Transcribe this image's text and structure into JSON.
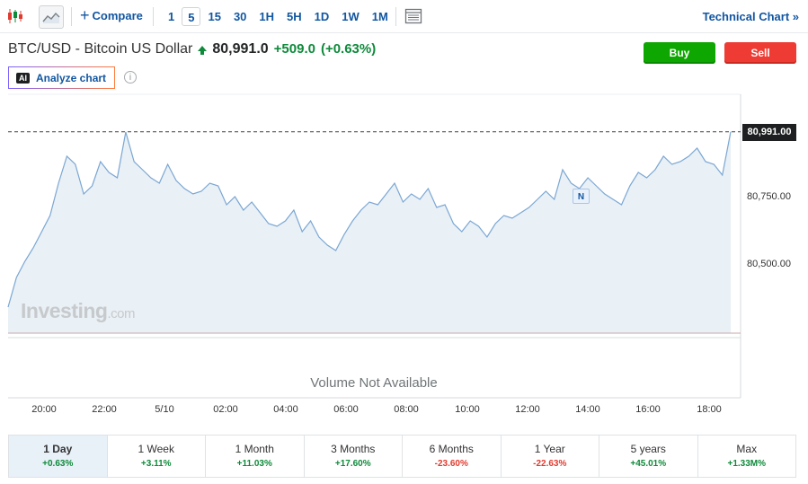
{
  "toolbar": {
    "chart_type_icons": [
      "candlestick-icon",
      "area-chart-icon"
    ],
    "compare_label": "Compare",
    "intervals": [
      "1",
      "5",
      "15",
      "30",
      "1H",
      "5H",
      "1D",
      "1W",
      "1M"
    ],
    "active_interval": "5",
    "layout_icon": "layout-icon",
    "technical_chart_label": "Technical Chart »"
  },
  "instrument": {
    "name": "BTC/USD - Bitcoin US Dollar",
    "price": "80,991.0",
    "change": "+509.0",
    "change_pct": "(+0.63%)",
    "direction": "up",
    "up_color": "#0e8a3a"
  },
  "actions": {
    "buy_label": "Buy",
    "sell_label": "Sell",
    "buy_color": "#0ea600",
    "sell_color": "#ee3b33"
  },
  "analyze": {
    "badge": "AI",
    "label": "Analyze chart",
    "info_icon": "i"
  },
  "chart": {
    "last_price_tag": "80,991.00",
    "y_labels": [
      "80,750.00",
      "80,500.00"
    ],
    "x_labels": [
      "20:00",
      "22:00",
      "5/10",
      "02:00",
      "04:00",
      "06:00",
      "08:00",
      "10:00",
      "12:00",
      "14:00",
      "16:00",
      "18:00"
    ],
    "volume_text": "Volume Not Available",
    "watermark": "Investing",
    "watermark_suffix": ".com",
    "news_marker": "N",
    "line_color": "#7ba7d3",
    "fill_color": "#e9f0f6"
  },
  "chart_data": {
    "type": "area",
    "y_ticks": [
      80750,
      80500
    ],
    "last_price": 80991,
    "values": [
      80340,
      80450,
      80510,
      80560,
      80620,
      80680,
      80800,
      80900,
      80870,
      80760,
      80790,
      80880,
      80840,
      80820,
      80990,
      80880,
      80850,
      80820,
      80800,
      80870,
      80810,
      80780,
      80760,
      80770,
      80800,
      80790,
      80720,
      80750,
      80700,
      80730,
      80690,
      80650,
      80640,
      80660,
      80700,
      80620,
      80660,
      80600,
      80570,
      80550,
      80610,
      80660,
      80700,
      80730,
      80720,
      80760,
      80800,
      80730,
      80760,
      80740,
      80780,
      80710,
      80720,
      80650,
      80620,
      80660,
      80640,
      80600,
      80650,
      80680,
      80670,
      80690,
      80710,
      80740,
      80770,
      80740,
      80850,
      80800,
      80780,
      80820,
      80790,
      80760,
      80740,
      80720,
      80790,
      80840,
      80820,
      80850,
      80900,
      80870,
      80880,
      80900,
      80930,
      80880,
      80870,
      80830,
      80991
    ]
  },
  "periods": [
    {
      "label": "1 Day",
      "change": "+0.63%",
      "dir": "pos"
    },
    {
      "label": "1 Week",
      "change": "+3.11%",
      "dir": "pos"
    },
    {
      "label": "1 Month",
      "change": "+11.03%",
      "dir": "pos"
    },
    {
      "label": "3 Months",
      "change": "+17.60%",
      "dir": "pos"
    },
    {
      "label": "6 Months",
      "change": "-23.60%",
      "dir": "neg"
    },
    {
      "label": "1 Year",
      "change": "-22.63%",
      "dir": "neg"
    },
    {
      "label": "5 years",
      "change": "+45.01%",
      "dir": "pos"
    },
    {
      "label": "Max",
      "change": "+1.33M%",
      "dir": "pos"
    }
  ],
  "active_period": "1 Day"
}
